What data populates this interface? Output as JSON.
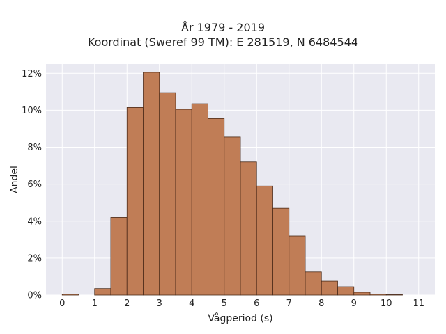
{
  "chart_data": {
    "type": "bar",
    "title_line1": "År 1979 - 2019",
    "title_line2": "Koordinat (Sweref 99 TM): E 281519, N 6484544",
    "xlabel": "Vågperiod (s)",
    "ylabel": "Andel",
    "xlim": [
      -0.5,
      11.5
    ],
    "ylim": [
      0,
      12.5
    ],
    "x_ticks": [
      0,
      1,
      2,
      3,
      4,
      5,
      6,
      7,
      8,
      9,
      10,
      11
    ],
    "x_tick_labels": [
      "0",
      "1",
      "2",
      "3",
      "4",
      "5",
      "6",
      "7",
      "8",
      "9",
      "10",
      "11"
    ],
    "y_ticks": [
      0,
      2,
      4,
      6,
      8,
      10,
      12
    ],
    "y_tick_labels": [
      "0%",
      "2%",
      "4%",
      "6%",
      "8%",
      "10%",
      "12%"
    ],
    "bin_width": 0.5,
    "bins": [
      {
        "start": 0.0,
        "value": 0.05
      },
      {
        "start": 0.5,
        "value": 0.0
      },
      {
        "start": 1.0,
        "value": 0.35
      },
      {
        "start": 1.5,
        "value": 4.2
      },
      {
        "start": 2.0,
        "value": 10.15
      },
      {
        "start": 2.5,
        "value": 12.05
      },
      {
        "start": 3.0,
        "value": 10.95
      },
      {
        "start": 3.5,
        "value": 10.05
      },
      {
        "start": 4.0,
        "value": 10.35
      },
      {
        "start": 4.5,
        "value": 9.55
      },
      {
        "start": 5.0,
        "value": 8.55
      },
      {
        "start": 5.5,
        "value": 7.2
      },
      {
        "start": 6.0,
        "value": 5.9
      },
      {
        "start": 6.5,
        "value": 4.7
      },
      {
        "start": 7.0,
        "value": 3.2
      },
      {
        "start": 7.5,
        "value": 1.25
      },
      {
        "start": 8.0,
        "value": 0.75
      },
      {
        "start": 8.5,
        "value": 0.45
      },
      {
        "start": 9.0,
        "value": 0.15
      },
      {
        "start": 9.5,
        "value": 0.05
      },
      {
        "start": 10.0,
        "value": 0.02
      }
    ],
    "grid": true,
    "colors": {
      "bar_fill": "#c07d56",
      "bar_edge": "#4a2a18",
      "plot_background": "#e9e9f1",
      "grid": "#ffffff"
    }
  }
}
